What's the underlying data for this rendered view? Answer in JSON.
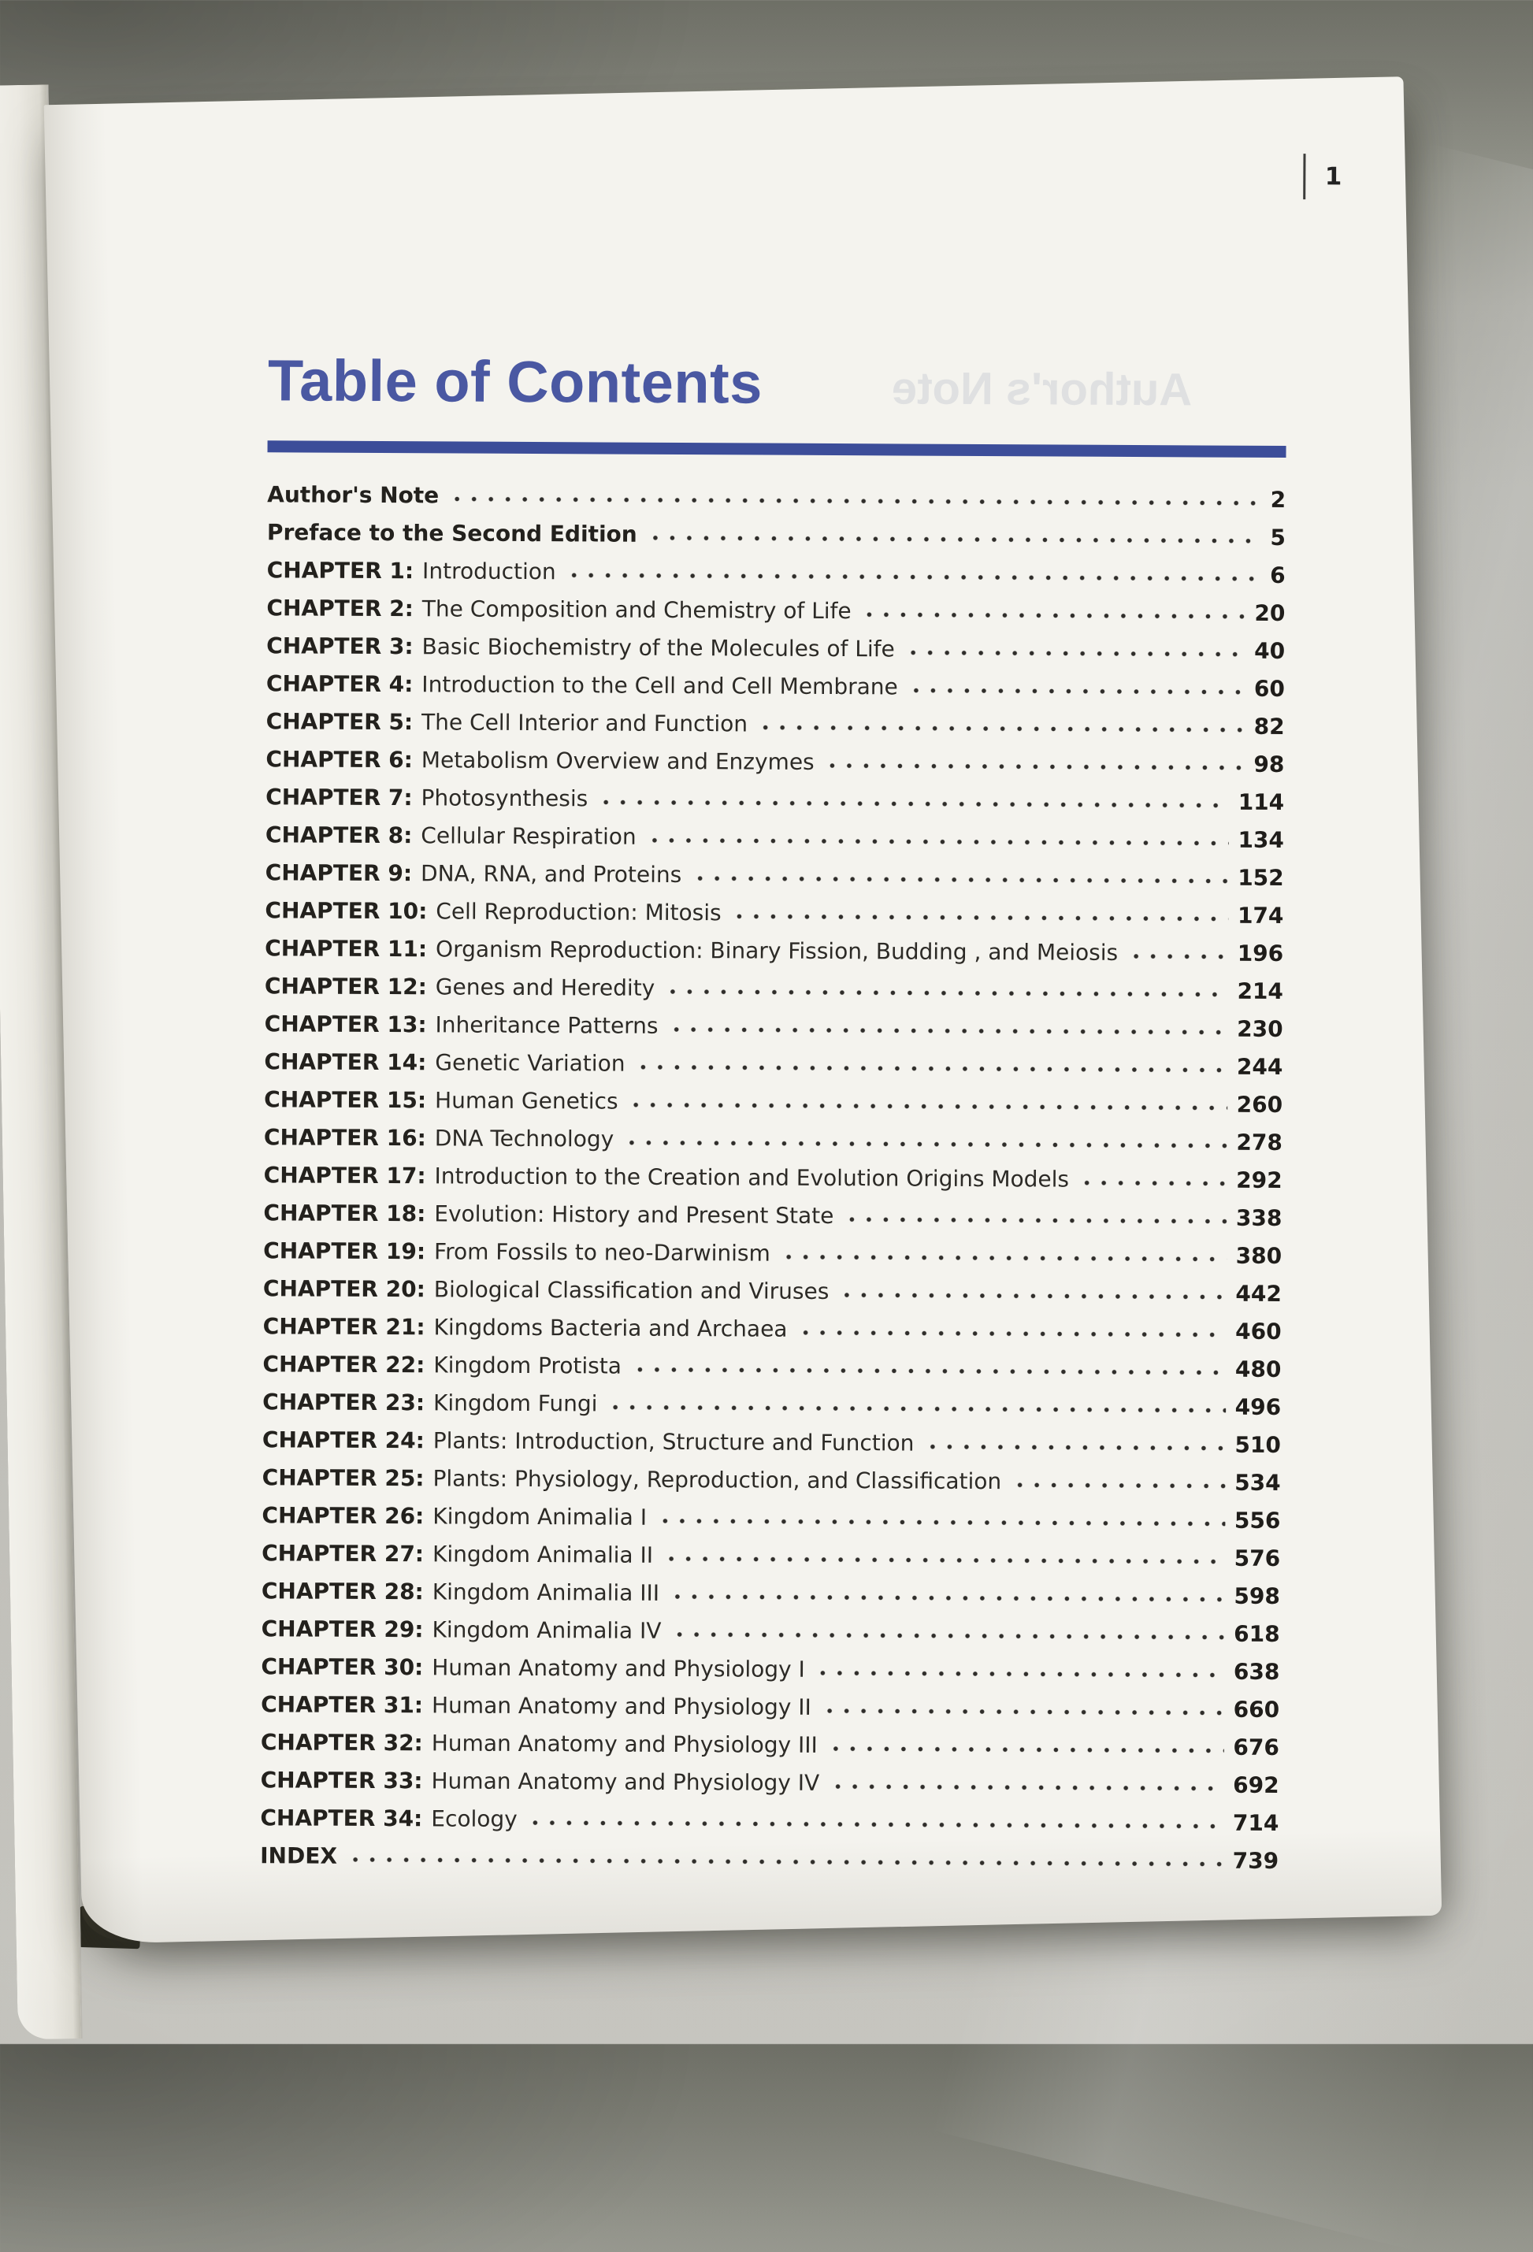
{
  "page": {
    "number": "1",
    "title": "Table of Contents",
    "bleed_through": "Author's Note"
  },
  "colors": {
    "accent": "#4a58a2",
    "rule": "#3c4d99",
    "ink": "#2a2824",
    "paper": "#f4f3ee"
  },
  "toc": {
    "entries": [
      {
        "label": "Author's Note",
        "title": "",
        "page": "2"
      },
      {
        "label": "Preface to the Second Edition",
        "title": "",
        "page": "5"
      },
      {
        "label": "CHAPTER 1:",
        "title": "Introduction",
        "page": "6"
      },
      {
        "label": "CHAPTER 2:",
        "title": "The Composition and Chemistry of Life",
        "page": "20"
      },
      {
        "label": "CHAPTER 3:",
        "title": "Basic Biochemistry of the Molecules of Life",
        "page": "40"
      },
      {
        "label": "CHAPTER 4:",
        "title": "Introduction to the Cell and Cell Membrane",
        "page": "60"
      },
      {
        "label": "CHAPTER 5:",
        "title": "The Cell Interior and Function",
        "page": "82"
      },
      {
        "label": "CHAPTER 6:",
        "title": "Metabolism Overview and Enzymes",
        "page": "98"
      },
      {
        "label": "CHAPTER 7:",
        "title": "Photosynthesis",
        "page": "114"
      },
      {
        "label": "CHAPTER 8:",
        "title": "Cellular Respiration",
        "page": "134"
      },
      {
        "label": "CHAPTER 9:",
        "title": "DNA, RNA, and Proteins",
        "page": "152"
      },
      {
        "label": "CHAPTER 10:",
        "title": "Cell Reproduction: Mitosis",
        "page": "174"
      },
      {
        "label": "CHAPTER 11:",
        "title": "Organism Reproduction: Binary Fission, Budding , and Meiosis",
        "page": "196"
      },
      {
        "label": "CHAPTER 12:",
        "title": "Genes and Heredity",
        "page": "214"
      },
      {
        "label": "CHAPTER 13:",
        "title": "Inheritance Patterns",
        "page": "230"
      },
      {
        "label": "CHAPTER 14:",
        "title": "Genetic Variation",
        "page": "244"
      },
      {
        "label": "CHAPTER 15:",
        "title": "Human Genetics",
        "page": "260"
      },
      {
        "label": "CHAPTER 16:",
        "title": "DNA Technology",
        "page": "278"
      },
      {
        "label": "CHAPTER 17:",
        "title": "Introduction to the Creation and Evolution Origins Models",
        "page": "292"
      },
      {
        "label": "CHAPTER 18:",
        "title": "Evolution: History and Present State",
        "page": "338"
      },
      {
        "label": "CHAPTER 19:",
        "title": "From Fossils to neo-Darwinism",
        "page": "380"
      },
      {
        "label": "CHAPTER 20:",
        "title": "Biological Classification and Viruses",
        "page": "442"
      },
      {
        "label": "CHAPTER 21:",
        "title": "Kingdoms Bacteria and Archaea",
        "page": "460"
      },
      {
        "label": "CHAPTER 22:",
        "title": "Kingdom Protista",
        "page": "480"
      },
      {
        "label": "CHAPTER 23:",
        "title": "Kingdom Fungi",
        "page": "496"
      },
      {
        "label": "CHAPTER 24:",
        "title": "Plants: Introduction, Structure and Function",
        "page": "510"
      },
      {
        "label": "CHAPTER 25:",
        "title": "Plants: Physiology, Reproduction, and Classification",
        "page": "534"
      },
      {
        "label": "CHAPTER 26:",
        "title": "Kingdom Animalia I",
        "page": "556"
      },
      {
        "label": "CHAPTER 27:",
        "title": "Kingdom Animalia II",
        "page": "576"
      },
      {
        "label": "CHAPTER 28:",
        "title": "Kingdom Animalia III",
        "page": "598"
      },
      {
        "label": "CHAPTER 29:",
        "title": "Kingdom Animalia IV",
        "page": "618"
      },
      {
        "label": "CHAPTER 30:",
        "title": "Human Anatomy and Physiology I",
        "page": "638"
      },
      {
        "label": "CHAPTER 31:",
        "title": "Human Anatomy and Physiology II",
        "page": "660"
      },
      {
        "label": "CHAPTER 32:",
        "title": "Human Anatomy and Physiology III",
        "page": "676"
      },
      {
        "label": "CHAPTER 33:",
        "title": "Human Anatomy and Physiology IV",
        "page": "692"
      },
      {
        "label": "CHAPTER 34:",
        "title": "Ecology",
        "page": "714"
      },
      {
        "label": "INDEX",
        "title": "",
        "page": "739"
      }
    ]
  }
}
